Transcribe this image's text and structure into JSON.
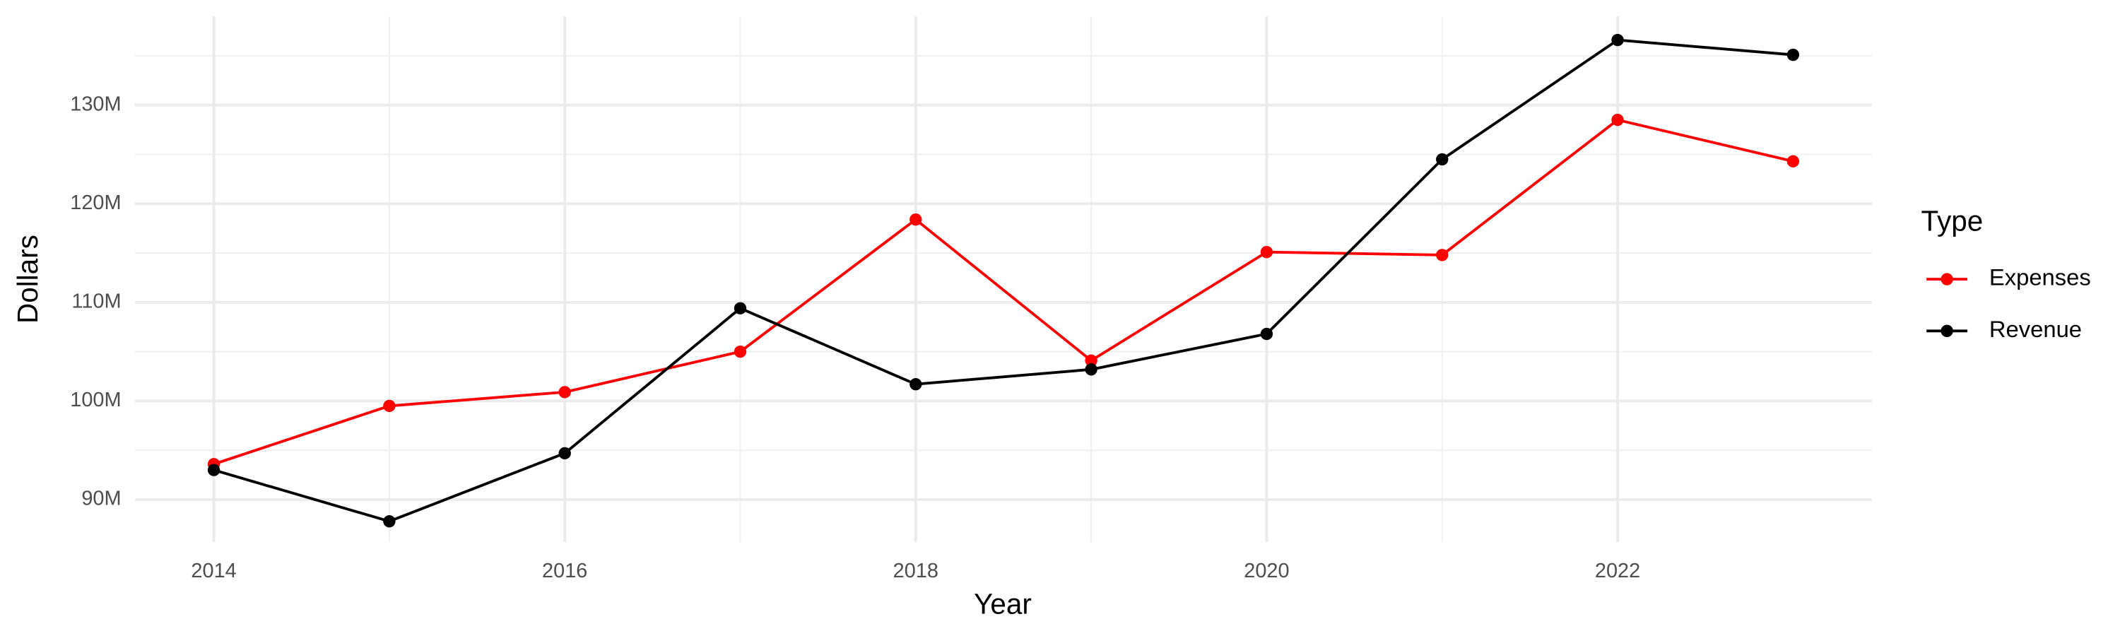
{
  "chart_data": {
    "type": "line",
    "x_label": "Year",
    "y_label": "Dollars",
    "x": [
      2014,
      2015,
      2016,
      2017,
      2018,
      2019,
      2020,
      2021,
      2022,
      2023
    ],
    "series": [
      {
        "name": "Expenses",
        "color": "#ff0000",
        "values": [
          93.6,
          99.5,
          100.9,
          105.0,
          118.4,
          104.1,
          115.1,
          114.8,
          128.5,
          124.3
        ]
      },
      {
        "name": "Revenue",
        "color": "#000000",
        "values": [
          93.0,
          87.8,
          94.7,
          109.4,
          101.7,
          103.2,
          106.8,
          124.5,
          136.6,
          135.1
        ]
      }
    ],
    "xlim": [
      2013.55,
      2023.45
    ],
    "xticks": [
      2014,
      2016,
      2018,
      2020,
      2022
    ],
    "ylim": [
      85.7,
      139.0
    ],
    "yticks": [
      {
        "value": 90,
        "label": "90M"
      },
      {
        "value": 100,
        "label": "100M"
      },
      {
        "value": 110,
        "label": "110M"
      },
      {
        "value": 120,
        "label": "120M"
      },
      {
        "value": 130,
        "label": "130M"
      }
    ],
    "legend_title": "Type",
    "legend_position": "right",
    "grid": true
  }
}
